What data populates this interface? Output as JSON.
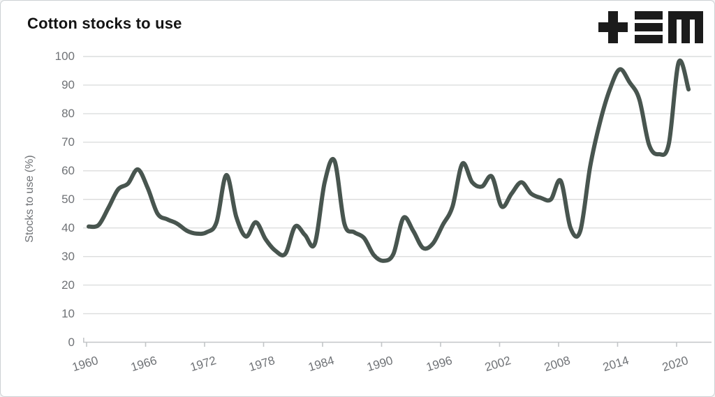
{
  "window": {
    "background": "#ffffff",
    "border_color": "#ccd0d4"
  },
  "header": {
    "title": "Cotton stocks to use",
    "logo_name": "plus-three-bars-m-logo",
    "logo_color": "#1b1b1b"
  },
  "chart_data": {
    "type": "line",
    "title": "Cotton stocks to use",
    "xlabel": "",
    "ylabel": "Stocks to use (%)",
    "ylim": [
      0,
      100
    ],
    "ytick_step": 10,
    "xtick_labels": [
      1960,
      1966,
      1972,
      1978,
      1984,
      1990,
      1996,
      2002,
      2008,
      2014,
      2020
    ],
    "grid": "horizontal",
    "legend_position": "none",
    "line_color": "#48554f",
    "grid_color": "#dcdddd",
    "axis_color": "#c3c6c8",
    "tick_text_color": "#6f7276",
    "x": [
      1960,
      1961,
      1962,
      1963,
      1964,
      1965,
      1966,
      1967,
      1968,
      1969,
      1970,
      1971,
      1972,
      1973,
      1974,
      1975,
      1976,
      1977,
      1978,
      1979,
      1980,
      1981,
      1982,
      1983,
      1984,
      1985,
      1986,
      1987,
      1988,
      1989,
      1990,
      1991,
      1992,
      1993,
      1994,
      1995,
      1996,
      1997,
      1998,
      1999,
      2000,
      2001,
      2002,
      2003,
      2004,
      2005,
      2006,
      2007,
      2008,
      2009,
      2010,
      2011,
      2012,
      2013,
      2014,
      2015,
      2016,
      2017,
      2018,
      2019,
      2020,
      2021
    ],
    "series": [
      {
        "name": "Stocks to use (%)",
        "values": [
          40.5,
          41,
          47,
          53.5,
          55.5,
          60.5,
          54,
          45,
          43,
          41.5,
          39,
          38,
          38.5,
          42,
          58.5,
          44,
          37,
          42,
          36,
          32,
          31,
          40.5,
          37.5,
          34.5,
          56,
          63.5,
          41.5,
          38.5,
          36.5,
          30.5,
          28.5,
          31,
          43.5,
          39,
          33,
          34.5,
          41,
          47.5,
          62.5,
          56,
          54.5,
          58,
          47.5,
          52,
          56,
          52,
          50.5,
          50,
          56.5,
          40,
          39,
          61.5,
          77,
          88.5,
          95.5,
          91,
          85,
          69,
          65.8,
          69.5,
          98,
          88.5
        ]
      }
    ]
  }
}
